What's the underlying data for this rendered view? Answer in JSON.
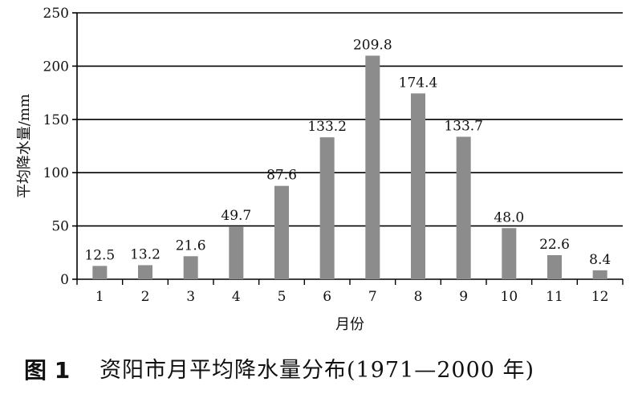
{
  "chart_data": {
    "type": "bar",
    "categories": [
      "1",
      "2",
      "3",
      "4",
      "5",
      "6",
      "7",
      "8",
      "9",
      "10",
      "11",
      "12"
    ],
    "values": [
      12.5,
      13.2,
      21.6,
      49.7,
      87.6,
      133.2,
      209.8,
      174.4,
      133.7,
      48.0,
      22.6,
      8.4
    ],
    "value_labels": [
      "12.5",
      "13.2",
      "21.6",
      "49.7",
      "87.6",
      "133.2",
      "209.8",
      "174.4",
      "133.7",
      "48.0",
      "22.6",
      "8.4"
    ],
    "yticks": [
      "0",
      "50",
      "100",
      "150",
      "200",
      "250"
    ],
    "ylim": [
      0,
      250
    ],
    "xlabel": "月份",
    "ylabel": "平均降水量/mm",
    "grid": true,
    "bar_color": "#8c8c8c",
    "grid_color": "#000000"
  },
  "caption": {
    "number": "图 1",
    "text": "资阳市月平均降水量分布(1971—2000 年)"
  }
}
